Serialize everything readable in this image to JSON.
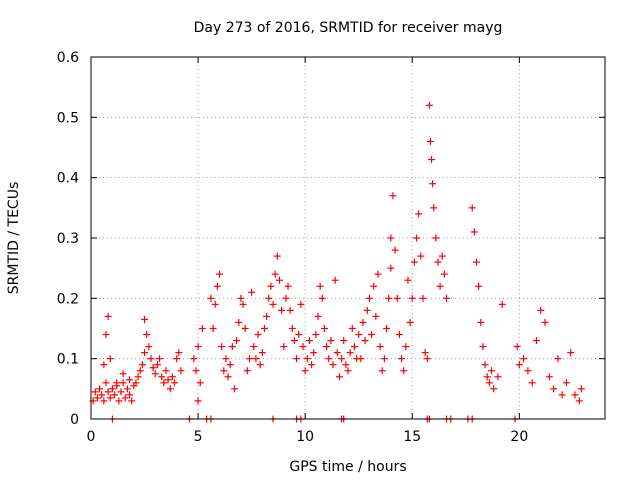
{
  "chart_data": {
    "type": "scatter",
    "title": "Day 273 of 2016, SRMTID for receiver mayg",
    "xlabel": "GPS time / hours",
    "ylabel": "SRMTID / TECUs",
    "xlim": [
      0,
      24
    ],
    "ylim": [
      0,
      0.6
    ],
    "grid": true,
    "marker": "plus",
    "color": "#ff0000",
    "x_ticks": [
      {
        "value": 0,
        "label": "0"
      },
      {
        "value": 5,
        "label": "5"
      },
      {
        "value": 10,
        "label": "10"
      },
      {
        "value": 15,
        "label": "15"
      },
      {
        "value": 20,
        "label": "20"
      }
    ],
    "y_ticks": [
      {
        "value": 0,
        "label": "0"
      },
      {
        "value": 0.1,
        "label": "0.1"
      },
      {
        "value": 0.2,
        "label": "0.2"
      },
      {
        "value": 0.3,
        "label": "0.3"
      },
      {
        "value": 0.4,
        "label": "0.4"
      },
      {
        "value": 0.5,
        "label": "0.5"
      },
      {
        "value": 0.6,
        "label": "0.6"
      }
    ],
    "series": [
      {
        "name": "SRMTID",
        "points": [
          [
            0.1,
            0.03
          ],
          [
            0.2,
            0.045
          ],
          [
            0.3,
            0.035
          ],
          [
            0.4,
            0.05
          ],
          [
            0.5,
            0.04
          ],
          [
            0.6,
            0.03
          ],
          [
            0.7,
            0.06
          ],
          [
            0.8,
            0.045
          ],
          [
            0.9,
            0.035
          ],
          [
            1.0,
            0.05
          ],
          [
            1.1,
            0.04
          ],
          [
            1.2,
            0.055
          ],
          [
            1.3,
            0.03
          ],
          [
            1.4,
            0.045
          ],
          [
            1.5,
            0.06
          ],
          [
            1.6,
            0.035
          ],
          [
            1.7,
            0.05
          ],
          [
            1.8,
            0.04
          ],
          [
            1.9,
            0.03
          ],
          [
            2.0,
            0.055
          ],
          [
            0.7,
            0.14
          ],
          [
            0.8,
            0.17
          ],
          [
            0.9,
            0.1
          ],
          [
            0.6,
            0.09
          ],
          [
            1.2,
            0.06
          ],
          [
            1.5,
            0.075
          ],
          [
            1.8,
            0.065
          ],
          [
            2.1,
            0.06
          ],
          [
            2.2,
            0.07
          ],
          [
            2.3,
            0.08
          ],
          [
            2.4,
            0.09
          ],
          [
            2.5,
            0.11
          ],
          [
            2.5,
            0.165
          ],
          [
            2.6,
            0.14
          ],
          [
            2.7,
            0.12
          ],
          [
            2.8,
            0.1
          ],
          [
            2.9,
            0.085
          ],
          [
            3.0,
            0.075
          ],
          [
            3.1,
            0.09
          ],
          [
            3.2,
            0.1
          ],
          [
            3.3,
            0.07
          ],
          [
            3.4,
            0.06
          ],
          [
            3.5,
            0.08
          ],
          [
            3.6,
            0.065
          ],
          [
            3.7,
            0.05
          ],
          [
            3.8,
            0.07
          ],
          [
            3.9,
            0.06
          ],
          [
            4.0,
            0.1
          ],
          [
            4.1,
            0.11
          ],
          [
            4.2,
            0.08
          ],
          [
            4.8,
            0.1
          ],
          [
            4.9,
            0.08
          ],
          [
            5.0,
            0.12
          ],
          [
            5.1,
            0.06
          ],
          [
            5.2,
            0.15
          ],
          [
            5.0,
            0.03
          ],
          [
            5.6,
            0.2
          ],
          [
            5.7,
            0.15
          ],
          [
            5.8,
            0.19
          ],
          [
            5.9,
            0.22
          ],
          [
            6.0,
            0.24
          ],
          [
            6.1,
            0.12
          ],
          [
            6.2,
            0.08
          ],
          [
            6.3,
            0.1
          ],
          [
            6.4,
            0.07
          ],
          [
            6.5,
            0.09
          ],
          [
            6.6,
            0.12
          ],
          [
            6.7,
            0.05
          ],
          [
            6.8,
            0.13
          ],
          [
            6.9,
            0.16
          ],
          [
            7.0,
            0.2
          ],
          [
            7.1,
            0.19
          ],
          [
            7.2,
            0.15
          ],
          [
            7.3,
            0.08
          ],
          [
            7.4,
            0.1
          ],
          [
            7.5,
            0.21
          ],
          [
            7.6,
            0.12
          ],
          [
            7.7,
            0.1
          ],
          [
            7.8,
            0.14
          ],
          [
            7.9,
            0.09
          ],
          [
            8.0,
            0.11
          ],
          [
            8.1,
            0.15
          ],
          [
            8.2,
            0.17
          ],
          [
            8.3,
            0.2
          ],
          [
            8.4,
            0.22
          ],
          [
            8.5,
            0.19
          ],
          [
            8.6,
            0.24
          ],
          [
            8.7,
            0.27
          ],
          [
            8.8,
            0.23
          ],
          [
            8.9,
            0.18
          ],
          [
            9.0,
            0.12
          ],
          [
            9.1,
            0.2
          ],
          [
            9.2,
            0.22
          ],
          [
            9.3,
            0.18
          ],
          [
            9.4,
            0.15
          ],
          [
            9.5,
            0.13
          ],
          [
            9.6,
            0.1
          ],
          [
            9.7,
            0.14
          ],
          [
            9.8,
            0.19
          ],
          [
            9.9,
            0.12
          ],
          [
            10.0,
            0.08
          ],
          [
            10.1,
            0.1
          ],
          [
            10.2,
            0.13
          ],
          [
            10.3,
            0.09
          ],
          [
            10.4,
            0.11
          ],
          [
            10.5,
            0.14
          ],
          [
            10.6,
            0.17
          ],
          [
            10.7,
            0.22
          ],
          [
            10.8,
            0.2
          ],
          [
            10.9,
            0.15
          ],
          [
            11.0,
            0.12
          ],
          [
            11.1,
            0.1
          ],
          [
            11.2,
            0.13
          ],
          [
            11.3,
            0.09
          ],
          [
            11.4,
            0.23
          ],
          [
            11.5,
            0.11
          ],
          [
            11.6,
            0.07
          ],
          [
            11.7,
            0.1
          ],
          [
            11.8,
            0.13
          ],
          [
            11.9,
            0.09
          ],
          [
            12.0,
            0.08
          ],
          [
            12.1,
            0.11
          ],
          [
            12.2,
            0.15
          ],
          [
            12.3,
            0.12
          ],
          [
            12.4,
            0.1
          ],
          [
            12.5,
            0.14
          ],
          [
            12.6,
            0.1
          ],
          [
            12.7,
            0.16
          ],
          [
            12.8,
            0.13
          ],
          [
            12.9,
            0.18
          ],
          [
            13.0,
            0.2
          ],
          [
            13.1,
            0.14
          ],
          [
            13.2,
            0.22
          ],
          [
            13.3,
            0.17
          ],
          [
            13.4,
            0.24
          ],
          [
            13.5,
            0.12
          ],
          [
            13.6,
            0.08
          ],
          [
            13.7,
            0.1
          ],
          [
            13.8,
            0.15
          ],
          [
            13.9,
            0.2
          ],
          [
            14.0,
            0.25
          ],
          [
            14.0,
            0.3
          ],
          [
            14.1,
            0.37
          ],
          [
            14.2,
            0.28
          ],
          [
            14.3,
            0.2
          ],
          [
            14.4,
            0.14
          ],
          [
            14.5,
            0.1
          ],
          [
            14.6,
            0.08
          ],
          [
            14.7,
            0.12
          ],
          [
            14.8,
            0.23
          ],
          [
            14.9,
            0.16
          ],
          [
            15.0,
            0.2
          ],
          [
            15.1,
            0.26
          ],
          [
            15.2,
            0.3
          ],
          [
            15.3,
            0.34
          ],
          [
            15.4,
            0.27
          ],
          [
            15.5,
            0.2
          ],
          [
            15.6,
            0.11
          ],
          [
            15.7,
            0.1
          ],
          [
            15.8,
            0.52
          ],
          [
            15.85,
            0.46
          ],
          [
            15.9,
            0.43
          ],
          [
            15.95,
            0.39
          ],
          [
            16.0,
            0.35
          ],
          [
            16.1,
            0.3
          ],
          [
            16.2,
            0.26
          ],
          [
            16.3,
            0.22
          ],
          [
            16.4,
            0.27
          ],
          [
            16.5,
            0.24
          ],
          [
            16.6,
            0.2
          ],
          [
            17.8,
            0.35
          ],
          [
            17.9,
            0.31
          ],
          [
            18.0,
            0.26
          ],
          [
            18.1,
            0.22
          ],
          [
            18.2,
            0.16
          ],
          [
            18.3,
            0.12
          ],
          [
            18.4,
            0.09
          ],
          [
            18.5,
            0.07
          ],
          [
            18.6,
            0.06
          ],
          [
            18.7,
            0.08
          ],
          [
            18.8,
            0.05
          ],
          [
            19.0,
            0.07
          ],
          [
            19.2,
            0.19
          ],
          [
            19.9,
            0.12
          ],
          [
            20.0,
            0.09
          ],
          [
            20.2,
            0.1
          ],
          [
            20.4,
            0.08
          ],
          [
            20.6,
            0.06
          ],
          [
            20.8,
            0.13
          ],
          [
            21.0,
            0.18
          ],
          [
            21.2,
            0.16
          ],
          [
            21.4,
            0.07
          ],
          [
            21.6,
            0.05
          ],
          [
            21.8,
            0.1
          ],
          [
            22.0,
            0.04
          ],
          [
            22.2,
            0.06
          ],
          [
            22.4,
            0.11
          ],
          [
            22.6,
            0.04
          ],
          [
            22.8,
            0.03
          ],
          [
            22.9,
            0.05
          ],
          [
            1.0,
            0.0
          ],
          [
            4.6,
            0.0
          ],
          [
            5.4,
            0.0
          ],
          [
            5.6,
            0.0
          ],
          [
            8.5,
            0.0
          ],
          [
            9.6,
            0.0
          ],
          [
            9.8,
            0.0
          ],
          [
            11.7,
            0.0
          ],
          [
            11.8,
            0.0
          ],
          [
            15.7,
            0.0
          ],
          [
            15.8,
            0.0
          ],
          [
            16.6,
            0.0
          ],
          [
            16.8,
            0.0
          ],
          [
            17.6,
            0.0
          ],
          [
            17.8,
            0.0
          ],
          [
            19.8,
            0.0
          ]
        ]
      }
    ]
  }
}
